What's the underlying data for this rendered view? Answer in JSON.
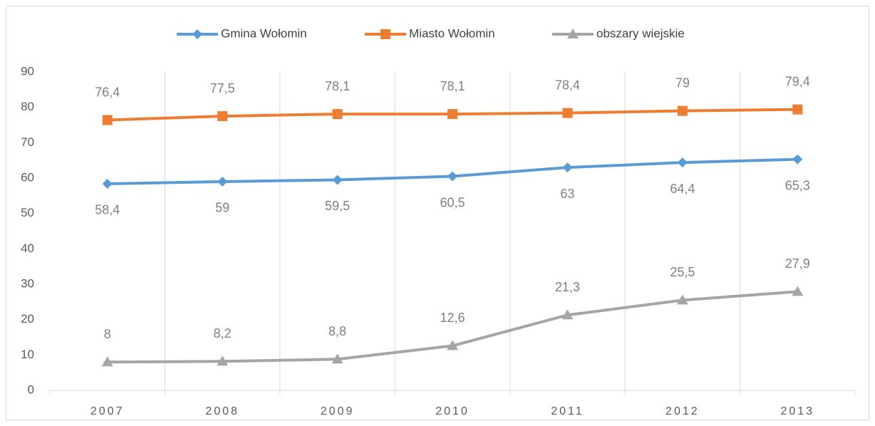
{
  "chart_data": {
    "type": "line",
    "categories": [
      "2007",
      "2008",
      "2009",
      "2010",
      "2011",
      "2012",
      "2013"
    ],
    "series": [
      {
        "name": "Gmina Wołomin",
        "color": "#5b9bd5",
        "marker": "diamond",
        "label_position": "below",
        "values": [
          58.4,
          59,
          59.5,
          60.5,
          63,
          64.4,
          65.3
        ],
        "value_labels": [
          "58,4",
          "59",
          "59,5",
          "60,5",
          "63",
          "64,4",
          "65,3"
        ]
      },
      {
        "name": "Miasto Wołomin",
        "color": "#ed7d31",
        "marker": "square",
        "label_position": "above",
        "values": [
          76.4,
          77.5,
          78.1,
          78.1,
          78.4,
          79,
          79.4
        ],
        "value_labels": [
          "76,4",
          "77,5",
          "78,1",
          "78,1",
          "78,4",
          "79",
          "79,4"
        ]
      },
      {
        "name": "obszary wiejskie",
        "color": "#a5a5a5",
        "marker": "triangle",
        "label_position": "above",
        "values": [
          8,
          8.2,
          8.8,
          12.6,
          21.3,
          25.5,
          27.9
        ],
        "value_labels": [
          "8",
          "8,2",
          "8,8",
          "12,6",
          "21,3",
          "25,5",
          "27,9"
        ]
      }
    ],
    "ylim": [
      0,
      90
    ],
    "yticks": [
      0,
      10,
      20,
      30,
      40,
      50,
      60,
      70,
      80,
      90
    ],
    "legend": "top",
    "grid": "vertical"
  }
}
